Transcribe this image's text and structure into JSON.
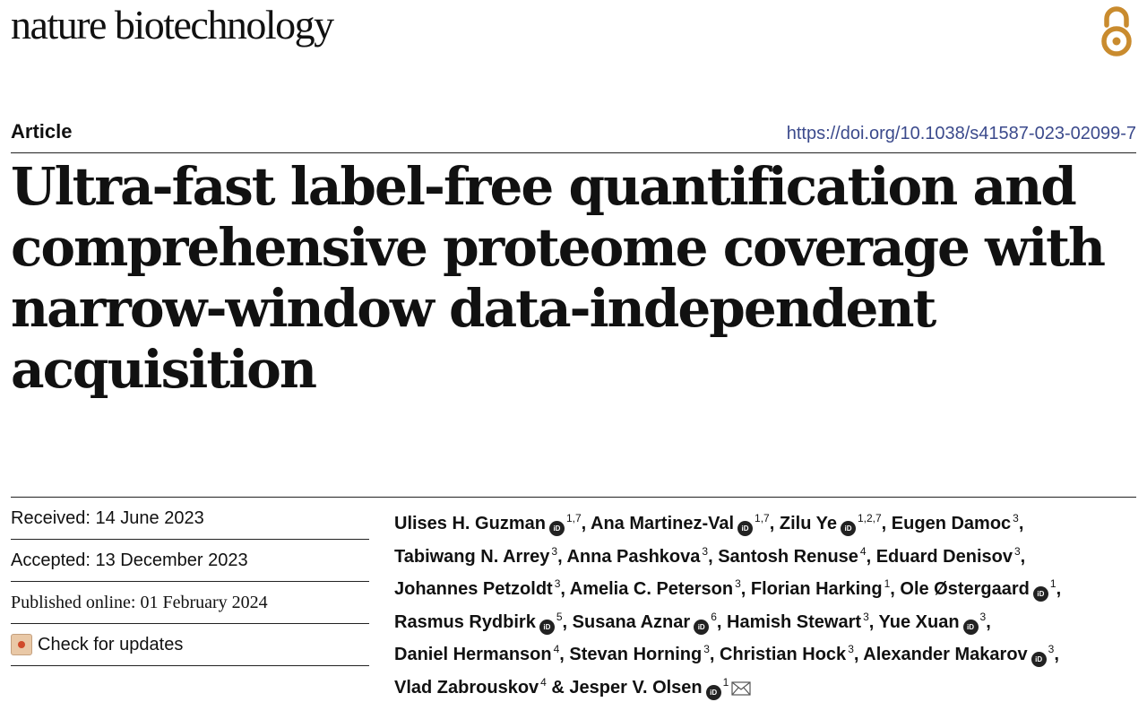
{
  "header": {
    "journal": "nature biotechnology",
    "article_type": "Article",
    "doi": "https://doi.org/10.1038/s41587-023-02099-7",
    "open_access_icon": "open-access-icon"
  },
  "title": "Ultra-fast label-free quantification and comprehensive proteome coverage with narrow-window data-independent acquisition",
  "dates": {
    "received": "Received: 14 June 2023",
    "accepted": "Accepted: 13 December 2023",
    "published": "Published online: 01 February 2024",
    "check_updates": "Check for updates"
  },
  "authors": [
    {
      "name": "Ulises H. Guzman",
      "orcid": true,
      "aff": "1,7"
    },
    {
      "name": "Ana Martinez-Val",
      "orcid": true,
      "aff": "1,7"
    },
    {
      "name": "Zilu Ye",
      "orcid": true,
      "aff": "1,2,7"
    },
    {
      "name": "Eugen Damoc",
      "orcid": false,
      "aff": "3"
    },
    {
      "name": "Tabiwang N. Arrey",
      "orcid": false,
      "aff": "3"
    },
    {
      "name": "Anna Pashkova",
      "orcid": false,
      "aff": "3"
    },
    {
      "name": "Santosh Renuse",
      "orcid": false,
      "aff": "4"
    },
    {
      "name": "Eduard Denisov",
      "orcid": false,
      "aff": "3"
    },
    {
      "name": "Johannes Petzoldt",
      "orcid": false,
      "aff": "3"
    },
    {
      "name": "Amelia C. Peterson",
      "orcid": false,
      "aff": "3"
    },
    {
      "name": "Florian Harking",
      "orcid": false,
      "aff": "1"
    },
    {
      "name": "Ole Østergaard",
      "orcid": true,
      "aff": "1"
    },
    {
      "name": "Rasmus Rydbirk",
      "orcid": true,
      "aff": "5"
    },
    {
      "name": "Susana Aznar",
      "orcid": true,
      "aff": "6"
    },
    {
      "name": "Hamish Stewart",
      "orcid": false,
      "aff": "3"
    },
    {
      "name": "Yue Xuan",
      "orcid": true,
      "aff": "3"
    },
    {
      "name": "Daniel Hermanson",
      "orcid": false,
      "aff": "4"
    },
    {
      "name": "Stevan Horning",
      "orcid": false,
      "aff": "3"
    },
    {
      "name": "Christian Hock",
      "orcid": false,
      "aff": "3"
    },
    {
      "name": "Alexander Makarov",
      "orcid": true,
      "aff": "3"
    },
    {
      "name": "Vlad Zabrouskov",
      "orcid": false,
      "aff": "4"
    },
    {
      "name": "Jesper V. Olsen",
      "orcid": true,
      "aff": "1",
      "corresponding": true
    }
  ],
  "separators": [
    ", ",
    ", ",
    ", ",
    ", ",
    ", ",
    ", ",
    ", ",
    ", ",
    ", ",
    ", ",
    ", ",
    ", ",
    ", ",
    ", ",
    ", ",
    ", ",
    ", ",
    ", ",
    ", ",
    ", ",
    " & "
  ],
  "orcid_label": "iD",
  "colors": {
    "doi": "#3b4a8c",
    "open_access": "#c98b2e"
  }
}
